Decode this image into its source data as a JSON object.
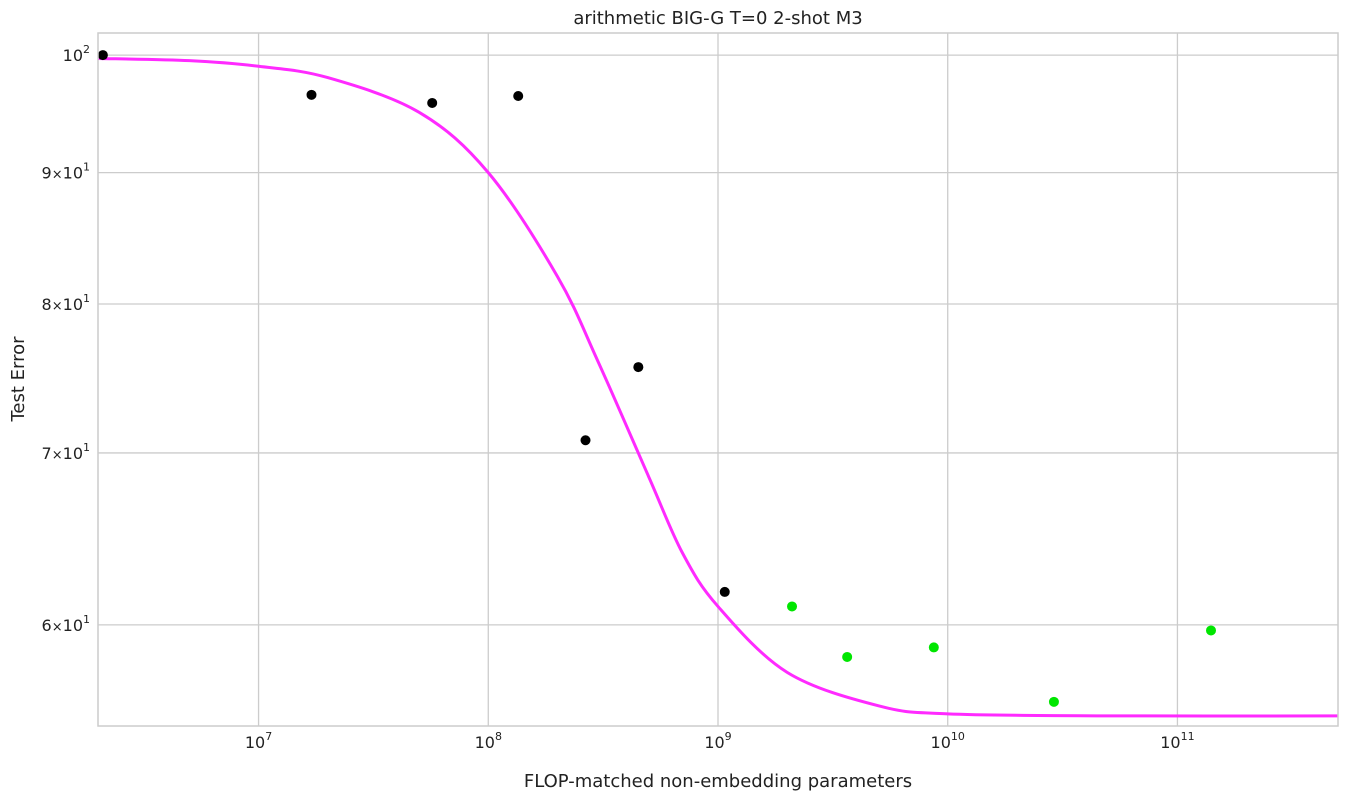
{
  "chart_data": {
    "type": "scatter",
    "title": "arithmetic BIG-G T=0 2-shot M3",
    "xlabel": "FLOP-matched non-embedding parameters",
    "ylabel": "Test Error",
    "xscale": "log",
    "yscale": "log",
    "xlim": [
      2000000,
      500000000000
    ],
    "ylim": [
      54.8,
      102.0
    ],
    "grid": true,
    "x_ticks": [
      {
        "value": 10000000,
        "base": "10",
        "exp": "7"
      },
      {
        "value": 100000000,
        "base": "10",
        "exp": "8"
      },
      {
        "value": 1000000000,
        "base": "10",
        "exp": "9"
      },
      {
        "value": 10000000000,
        "base": "10",
        "exp": "10"
      },
      {
        "value": 100000000000,
        "base": "10",
        "exp": "11"
      }
    ],
    "y_ticks": [
      {
        "value": 100,
        "mant": "",
        "base": "10",
        "exp": "2"
      },
      {
        "value": 90,
        "mant": "9",
        "base": "10",
        "exp": "1"
      },
      {
        "value": 80,
        "mant": "8",
        "base": "10",
        "exp": "1"
      },
      {
        "value": 70,
        "mant": "7",
        "base": "10",
        "exp": "1"
      },
      {
        "value": 60,
        "mant": "6",
        "base": "10",
        "exp": "1"
      }
    ],
    "series": [
      {
        "color": "#000000",
        "x": [
          2100000,
          17000000,
          57000000,
          135000000,
          265000000,
          450000000,
          1070000000
        ],
        "y": [
          100.0,
          96.5,
          95.8,
          96.4,
          70.8,
          75.6,
          61.8
        ]
      },
      {
        "color": "#00e600",
        "x": [
          2100000000,
          3650000000,
          8700000000,
          29000000000,
          140000000000
        ],
        "y": [
          61.0,
          58.3,
          58.8,
          56.0,
          59.7
        ]
      },
      {
        "color": "#ff2aff",
        "type": "line",
        "x": [
          2000000,
          5000000,
          10000000,
          20000000,
          50000000,
          100000000,
          200000000,
          300000000,
          500000000,
          700000000,
          1000000000,
          2000000000,
          5000000000,
          10000000000,
          50000000000,
          500000000000
        ],
        "y": [
          99.7,
          99.5,
          99.0,
          98.0,
          95.0,
          90.0,
          82.0,
          76.0,
          68.5,
          64.0,
          61.0,
          57.5,
          55.8,
          55.4,
          55.3,
          55.3
        ]
      }
    ]
  }
}
